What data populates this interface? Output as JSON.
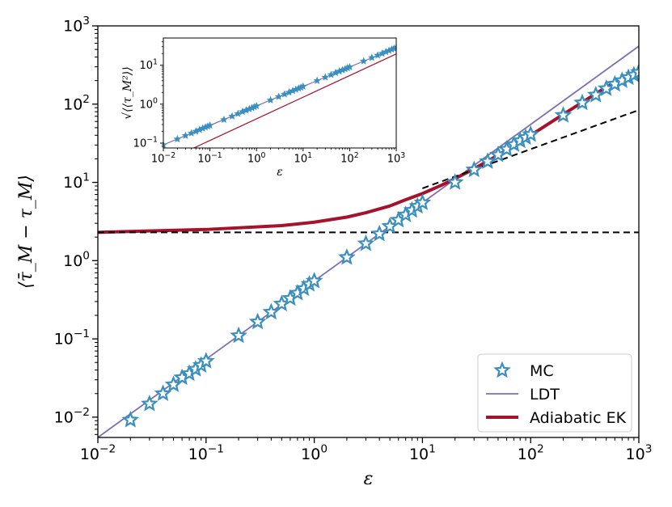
{
  "chart_data": [
    {
      "type": "scatter",
      "name": "main",
      "xscale": "log",
      "yscale": "log",
      "xlim": [
        0.01,
        1000
      ],
      "ylim": [
        0.0055,
        1000
      ],
      "xlabel": "ε",
      "ylabel": "⟨τ̄_M − τ_M⟩",
      "xticks": [
        {
          "base": "10",
          "exp": "−2",
          "value": 0.01
        },
        {
          "base": "10",
          "exp": "−1",
          "value": 0.1
        },
        {
          "base": "10",
          "exp": "0",
          "value": 1
        },
        {
          "base": "10",
          "exp": "1",
          "value": 10
        },
        {
          "base": "10",
          "exp": "2",
          "value": 100
        },
        {
          "base": "10",
          "exp": "3",
          "value": 1000
        }
      ],
      "yticks": [
        {
          "base": "10",
          "exp": "−2",
          "value": 0.01
        },
        {
          "base": "10",
          "exp": "−1",
          "value": 0.1
        },
        {
          "base": "10",
          "exp": "0",
          "value": 1
        },
        {
          "base": "10",
          "exp": "1",
          "value": 10
        },
        {
          "base": "10",
          "exp": "2",
          "value": 100
        },
        {
          "base": "10",
          "exp": "3",
          "value": 1000
        }
      ],
      "series": [
        {
          "name": "MC",
          "kind": "markers",
          "color": "#3a8fc0",
          "x": [
            0.02,
            0.03,
            0.04,
            0.05,
            0.06,
            0.07,
            0.08,
            0.09,
            0.1,
            0.2,
            0.3,
            0.4,
            0.5,
            0.6,
            0.7,
            0.8,
            0.9,
            1,
            2,
            3,
            4,
            5,
            6,
            7,
            8,
            9,
            10,
            20,
            30,
            40,
            50,
            60,
            70,
            80,
            90,
            100,
            200,
            300,
            400,
            500,
            600,
            700,
            800,
            900,
            1000
          ],
          "y": [
            0.0092,
            0.0148,
            0.02,
            0.026,
            0.032,
            0.036,
            0.041,
            0.046,
            0.052,
            0.11,
            0.165,
            0.22,
            0.28,
            0.33,
            0.385,
            0.44,
            0.5,
            0.55,
            1.1,
            1.65,
            2.2,
            2.75,
            3.3,
            3.85,
            4.4,
            4.95,
            5.5,
            10,
            14.5,
            18.5,
            22.5,
            26.5,
            30.5,
            34,
            37.5,
            41,
            72,
            104,
            131,
            158,
            180,
            200,
            218,
            236,
            255
          ]
        },
        {
          "name": "LDT",
          "kind": "line",
          "color": "#7b6fb2",
          "formula": "y = 0.55·ε",
          "x": [
            0.01,
            1000
          ],
          "y": [
            0.0055,
            550
          ]
        },
        {
          "name": "Adiabatic EK",
          "kind": "line",
          "color": "#a6122b",
          "x": [
            0.01,
            0.1,
            0.5,
            1,
            2,
            3,
            5,
            7,
            10,
            15,
            20,
            30,
            50,
            70,
            100,
            200,
            500,
            1000
          ],
          "y": [
            2.3,
            2.5,
            2.8,
            3.1,
            3.6,
            4.1,
            5,
            6,
            7.2,
            9.2,
            11.2,
            14.9,
            22.3,
            29.6,
            40,
            74,
            165,
            260
          ]
        },
        {
          "name": "asymptote-constant",
          "kind": "dashed",
          "color": "#000000",
          "x": [
            0.01,
            1000
          ],
          "y": [
            2.3,
            2.3
          ]
        },
        {
          "name": "asymptote-sqrt",
          "kind": "dashed",
          "color": "#000000",
          "x": [
            10,
            1000
          ],
          "y": [
            8.4,
            84
          ]
        }
      ],
      "legend": {
        "position": "bottom-right",
        "entries": [
          "MC",
          "LDT",
          "Adiabatic EK"
        ]
      }
    },
    {
      "type": "scatter",
      "name": "inset",
      "xscale": "log",
      "yscale": "log",
      "xlim": [
        0.01,
        1000
      ],
      "ylim": [
        0.075,
        50
      ],
      "xlabel": "ε",
      "ylabel": "√⟨⟨τ_M²⟩⟩",
      "xticks": [
        {
          "base": "10",
          "exp": "−2",
          "value": 0.01
        },
        {
          "base": "10",
          "exp": "−1",
          "value": 0.1
        },
        {
          "base": "10",
          "exp": "0",
          "value": 1
        },
        {
          "base": "10",
          "exp": "1",
          "value": 10
        },
        {
          "base": "10",
          "exp": "2",
          "value": 100
        },
        {
          "base": "10",
          "exp": "3",
          "value": 1000
        }
      ],
      "yticks": [
        {
          "base": "10",
          "exp": "−1",
          "value": 0.1
        },
        {
          "base": "10",
          "exp": "0",
          "value": 1
        },
        {
          "base": "10",
          "exp": "1",
          "value": 10
        }
      ],
      "series": [
        {
          "name": "MC",
          "kind": "markers",
          "color": "#3a8fc0",
          "x": [
            0.01,
            0.02,
            0.03,
            0.04,
            0.05,
            0.06,
            0.07,
            0.08,
            0.09,
            0.1,
            0.2,
            0.3,
            0.4,
            0.5,
            0.6,
            0.7,
            0.8,
            0.9,
            1,
            2,
            3,
            4,
            5,
            6,
            7,
            8,
            9,
            10,
            20,
            30,
            40,
            50,
            60,
            70,
            80,
            90,
            100,
            200,
            300,
            400,
            500,
            600,
            700,
            800,
            900,
            1000
          ],
          "y": [
            0.09,
            0.127,
            0.156,
            0.18,
            0.201,
            0.22,
            0.238,
            0.255,
            0.27,
            0.285,
            0.4,
            0.49,
            0.57,
            0.64,
            0.7,
            0.75,
            0.8,
            0.85,
            0.9,
            1.27,
            1.56,
            1.8,
            2.01,
            2.2,
            2.38,
            2.55,
            2.7,
            2.85,
            4,
            4.9,
            5.7,
            6.4,
            7,
            7.5,
            8,
            8.5,
            9,
            12.7,
            15.6,
            18,
            20.1,
            22,
            23.8,
            25.5,
            27,
            28.5
          ]
        },
        {
          "name": "LDT",
          "kind": "line",
          "color": "#7b6fb2",
          "x": [
            0.01,
            1000
          ],
          "y": [
            0.09,
            28.5
          ]
        },
        {
          "name": "Adiabatic EK",
          "kind": "line",
          "color": "#a6122b",
          "x": [
            0.045,
            1000
          ],
          "y": [
            0.075,
            19.5
          ]
        }
      ]
    }
  ]
}
